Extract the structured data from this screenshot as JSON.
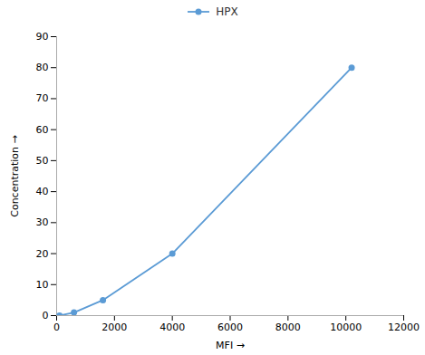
{
  "chart_data": {
    "type": "line",
    "x": [
      100,
      600,
      1600,
      4000,
      10200
    ],
    "series": [
      {
        "name": "HPX",
        "color": "#5b9bd5",
        "marker": "circle",
        "values": [
          0,
          1,
          5,
          20,
          80
        ]
      }
    ],
    "xlabel": "MFI",
    "ylabel": "Concentration",
    "xlim": [
      0,
      12000
    ],
    "ylim": [
      0,
      90
    ],
    "xticks": [
      0,
      2000,
      4000,
      6000,
      8000,
      10000,
      12000
    ],
    "yticks": [
      0,
      10,
      20,
      30,
      40,
      50,
      60,
      70,
      80,
      90
    ],
    "grid": false,
    "legend": "top"
  }
}
